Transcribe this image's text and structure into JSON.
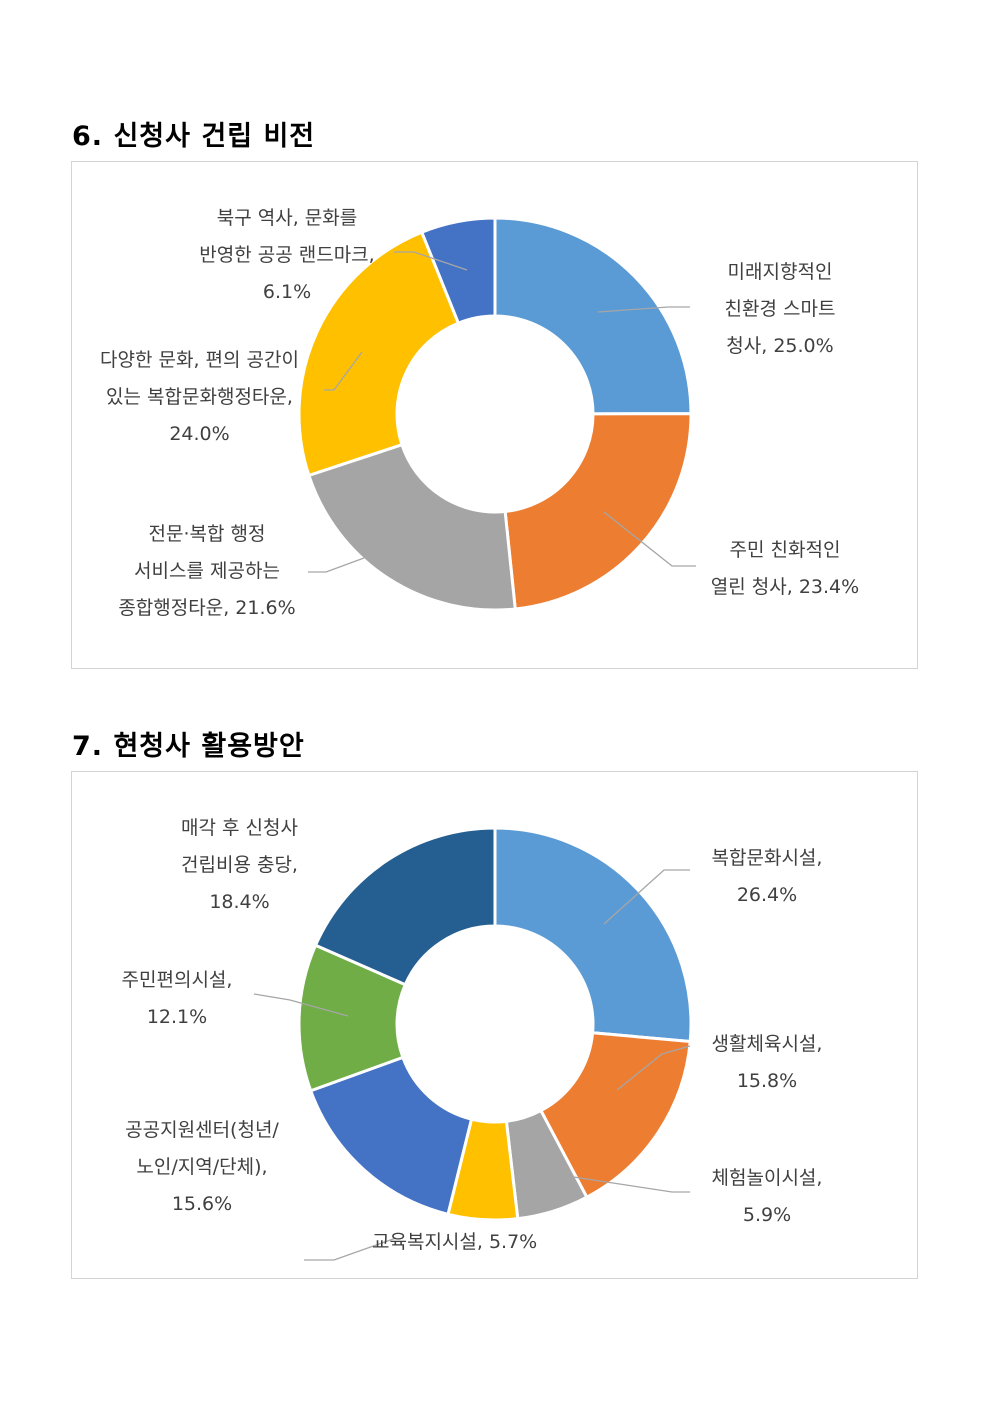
{
  "sections": [
    {
      "title": "6.  신청사  건립  비전"
    },
    {
      "title": "7.  현청사  활용방안"
    }
  ],
  "chart_data": [
    {
      "type": "pie",
      "donut": true,
      "title": "",
      "slices": [
        {
          "lines": [
            "미래지향적인",
            "친환경 스마트",
            "청사, 25.0%"
          ],
          "value": 25.0,
          "color": "#5B9BD5"
        },
        {
          "lines": [
            "주민 친화적인",
            "열린 청사, 23.4%"
          ],
          "value": 23.4,
          "color": "#ED7D31"
        },
        {
          "lines": [
            "전문·복합 행정",
            "서비스를 제공하는",
            "종합행정타운, 21.6%"
          ],
          "value": 21.6,
          "color": "#A5A5A5"
        },
        {
          "lines": [
            "다양한 문화, 편의 공간이",
            "있는 복합문화행정타운,",
            "24.0%"
          ],
          "value": 24.0,
          "color": "#FFC000"
        },
        {
          "lines": [
            "북구 역사, 문화를",
            "반영한 공공 랜드마크,",
            "6.1%"
          ],
          "value": 6.1,
          "color": "#4472C4"
        }
      ]
    },
    {
      "type": "pie",
      "donut": true,
      "title": "",
      "slices": [
        {
          "lines": [
            "복합문화시설,",
            "26.4%"
          ],
          "value": 26.4,
          "color": "#5B9BD5"
        },
        {
          "lines": [
            "생활체육시설,",
            "15.8%"
          ],
          "value": 15.8,
          "color": "#ED7D31"
        },
        {
          "lines": [
            "체험놀이시설,",
            "5.9%"
          ],
          "value": 5.9,
          "color": "#A5A5A5"
        },
        {
          "lines": [
            "교육복지시설, 5.7%"
          ],
          "value": 5.7,
          "color": "#FFC000"
        },
        {
          "lines": [
            "공공지원센터(청년/",
            "노인/지역/단체),",
            "15.6%"
          ],
          "value": 15.6,
          "color": "#4472C4"
        },
        {
          "lines": [
            "주민편의시설,",
            "12.1%"
          ],
          "value": 12.1,
          "color": "#70AD47"
        },
        {
          "lines": [
            "매각 후 신청사",
            "건립비용 충당,",
            "18.4%"
          ],
          "value": 18.4,
          "color": "#255E91"
        }
      ]
    }
  ]
}
